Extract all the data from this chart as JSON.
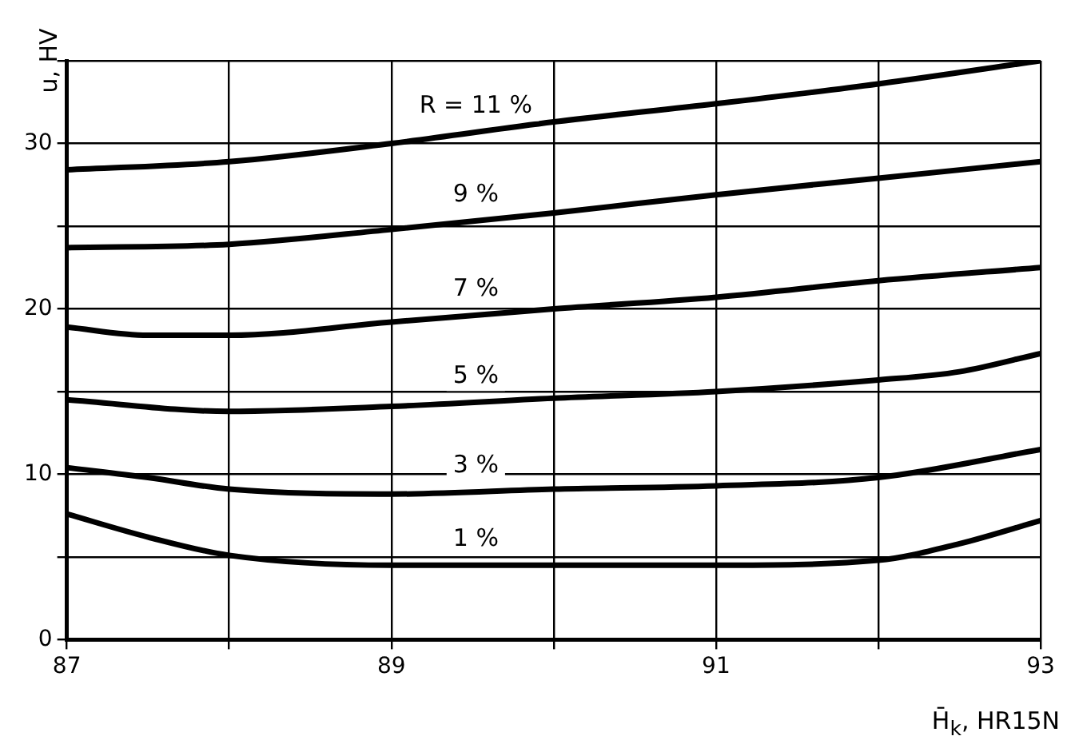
{
  "chart_data": {
    "type": "line",
    "xlabel": "H̄$_{k}$, HR15N",
    "ylabel": "u, HV",
    "xlim": [
      87,
      93
    ],
    "ylim": [
      0,
      35
    ],
    "xticks": [
      87,
      {
        "value": 88,
        "label": null
      },
      89,
      {
        "value": 90,
        "label": null
      },
      91,
      {
        "value": 92,
        "label": null
      },
      93
    ],
    "yticks": [
      0,
      {
        "value": 5,
        "label": null
      },
      10,
      {
        "value": 15,
        "label": null
      },
      20,
      {
        "value": 25,
        "label": null
      },
      30,
      {
        "value": 35,
        "label": null
      }
    ],
    "grid": true,
    "legend": false,
    "marker": "none",
    "line_style": "solid",
    "series": [
      {
        "name": "R = 11 %",
        "color": "#000000",
        "x": [
          87,
          88,
          89,
          90,
          91,
          92,
          93
        ],
        "values": [
          28.4,
          28.9,
          30,
          31.3,
          32.4,
          33.6,
          35
        ]
      },
      {
        "name": "9 %",
        "color": "#000000",
        "x": [
          87,
          88,
          89,
          90,
          91,
          92,
          93
        ],
        "values": [
          23.7,
          23.9,
          24.8,
          25.8,
          26.9,
          27.9,
          28.9
        ]
      },
      {
        "name": "7 %",
        "color": "#000000",
        "x": [
          87,
          87.5,
          88,
          89,
          90,
          91,
          92,
          93
        ],
        "values": [
          18.9,
          18.4,
          18.4,
          19.2,
          20,
          20.7,
          21.7,
          22.5
        ]
      },
      {
        "name": "5 %",
        "color": "#000000",
        "x": [
          87,
          88,
          89,
          90,
          91,
          92,
          92.5,
          93
        ],
        "values": [
          14.5,
          13.8,
          14.1,
          14.6,
          15,
          15.7,
          16.2,
          17.3
        ]
      },
      {
        "name": "3 %",
        "color": "#000000",
        "x": [
          87,
          87.5,
          88,
          89,
          90,
          91,
          92,
          93
        ],
        "values": [
          10.4,
          9.8,
          9.1,
          8.8,
          9.1,
          9.3,
          9.8,
          11.5
        ]
      },
      {
        "name": "1 %",
        "color": "#000000",
        "x": [
          87,
          87.5,
          88,
          89,
          90,
          91,
          92,
          92.5,
          93
        ],
        "values": [
          7.6,
          6.2,
          5.1,
          4.5,
          4.5,
          4.5,
          4.8,
          5.8,
          7.2
        ]
      }
    ]
  }
}
